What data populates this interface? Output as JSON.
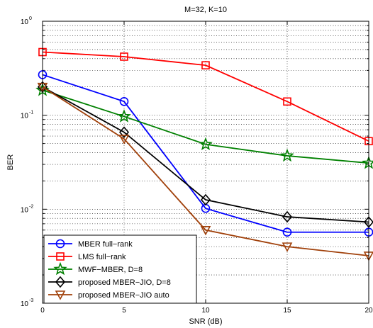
{
  "chart_data": {
    "type": "line",
    "title": "M=32, K=10",
    "xlabel": "SNR (dB)",
    "ylabel": "BER",
    "x": [
      0,
      5,
      10,
      15,
      20
    ],
    "xlim": [
      0,
      20
    ],
    "ylim": [
      0.001,
      1
    ],
    "yscale": "log",
    "grid": true,
    "legend_position": "bottom-left",
    "x_ticks": [
      "0",
      "5",
      "10",
      "15",
      "20"
    ],
    "y_ticks": [
      {
        "base": "10",
        "exp": "-3"
      },
      {
        "base": "10",
        "exp": "-2"
      },
      {
        "base": "10",
        "exp": "-1"
      },
      {
        "base": "10",
        "exp": "0"
      }
    ],
    "series": [
      {
        "name": "MBER full−rank",
        "color": "#0000ff",
        "marker": "circle",
        "values": [
          0.27,
          0.14,
          0.0102,
          0.0057,
          0.0057
        ]
      },
      {
        "name": "LMS full−rank",
        "color": "#ff0000",
        "marker": "square",
        "values": [
          0.47,
          0.42,
          0.34,
          0.14,
          0.053
        ]
      },
      {
        "name": "MWF−MBER, D=8",
        "color": "#008000",
        "marker": "star",
        "values": [
          0.185,
          0.097,
          0.049,
          0.037,
          0.031
        ]
      },
      {
        "name": "proposed MBER−JIO, D=8",
        "color": "#000000",
        "marker": "diamond",
        "values": [
          0.2,
          0.066,
          0.0126,
          0.0083,
          0.0073
        ]
      },
      {
        "name": "proposed MBER−JIO auto",
        "color": "#a0400a",
        "marker": "triangle-down",
        "values": [
          0.2,
          0.056,
          0.006,
          0.004,
          0.0032
        ]
      }
    ]
  }
}
